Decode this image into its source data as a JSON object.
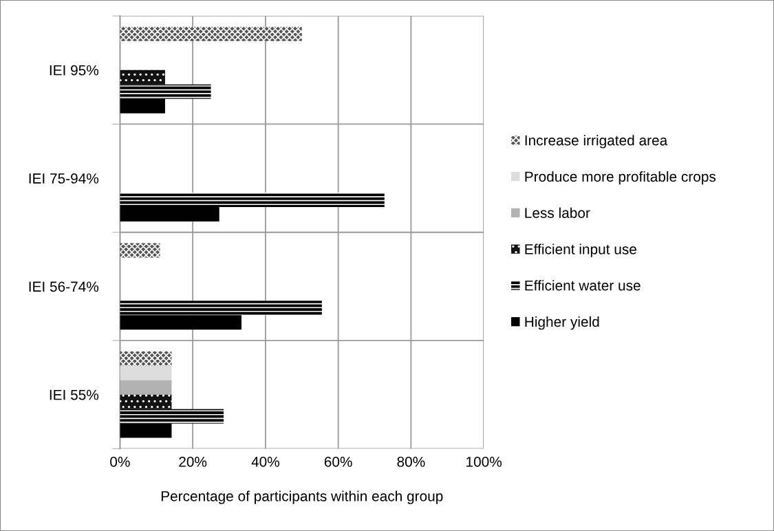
{
  "chart_data": {
    "type": "bar",
    "orientation": "horizontal",
    "xlabel": "Percentage of participants within each group",
    "categories": [
      "IEI 95%",
      "IEI 75-94%",
      "IEI 56-74%",
      "IEI 55%"
    ],
    "series": [
      {
        "name": "Increase irrigated area",
        "color": "#555555",
        "values": [
          50,
          0,
          11,
          14.2
        ]
      },
      {
        "name": "Produce more profitable crops",
        "color": "#dddddd",
        "values": [
          0,
          0,
          0,
          14.2
        ]
      },
      {
        "name": "Less labor",
        "color": "#b2b2b2",
        "values": [
          0,
          0,
          0,
          14.2
        ]
      },
      {
        "name": "Efficient input use",
        "color": "#111111",
        "values": [
          12.4,
          0,
          0,
          14.2
        ]
      },
      {
        "name": "Efficient water use",
        "color": "#000000",
        "values": [
          25,
          72.7,
          55.5,
          28.5
        ]
      },
      {
        "name": "Higher yield",
        "color": "#000000",
        "values": [
          12.4,
          27.3,
          33.4,
          14.2
        ]
      }
    ],
    "xlim": [
      0,
      100
    ],
    "xticks": [
      {
        "value": 0,
        "label": "0%"
      },
      {
        "value": 20,
        "label": "20%"
      },
      {
        "value": 40,
        "label": "40%"
      },
      {
        "value": 60,
        "label": "60%"
      },
      {
        "value": 80,
        "label": "80%"
      },
      {
        "value": 100,
        "label": "100%"
      }
    ],
    "grid": true,
    "legend": "right"
  }
}
